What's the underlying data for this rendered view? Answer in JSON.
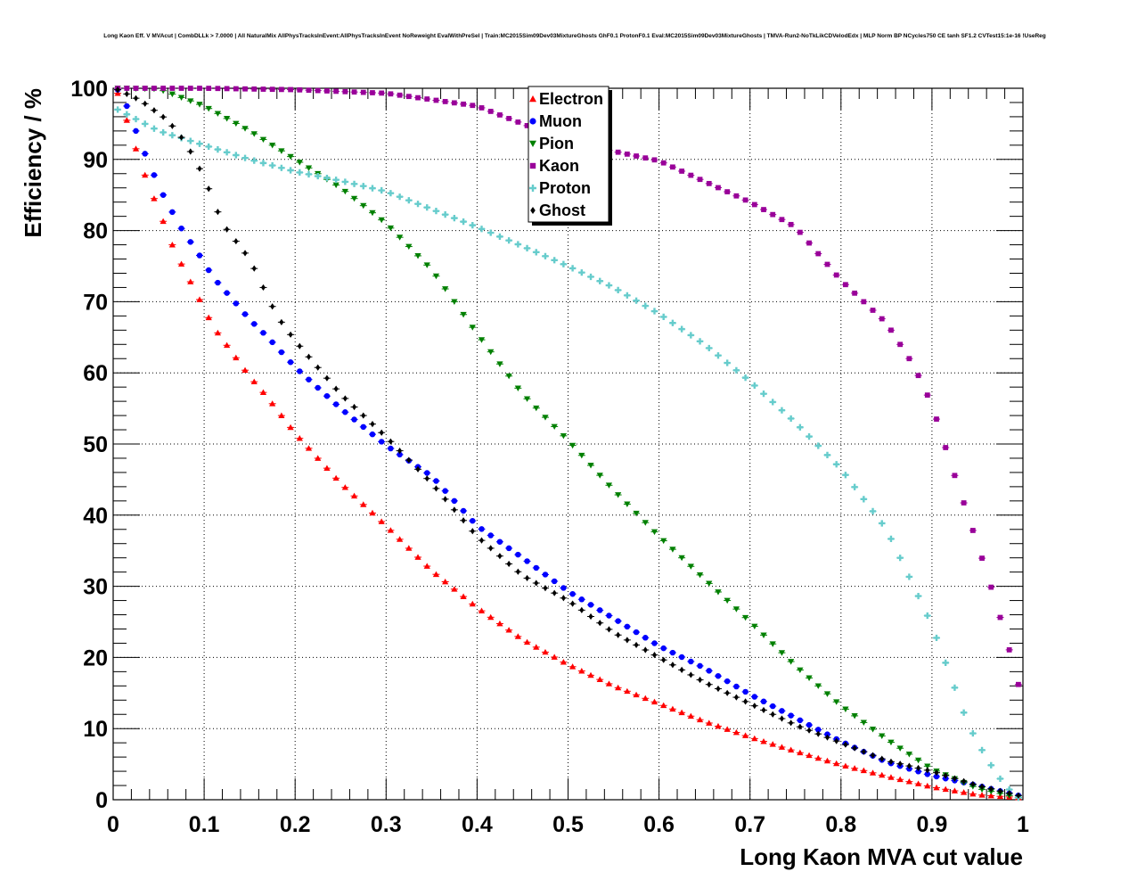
{
  "chart_data": {
    "type": "scatter",
    "title": "Long Kaon Eff. V MVAcut | CombDLLk > 7.0000 | All NaturalMix AllPhysTracksInEvent:AllPhysTracksInEvent NoReweight EvalWithPreSel | Train:MC2015Sim09Dev03MixtureGhosts GhF0.1 ProtonF0.1 Eval:MC2015Sim09Dev03MixtureGhosts | TMVA-Run2-NoTkLikCDVelodEdx | MLP Norm BP NCycles750 CE tanh SF1.2 CVTest15:1e-16 !UseReg",
    "xlabel": "Long Kaon MVA cut value",
    "ylabel": "Efficiency / %",
    "xlim": [
      0,
      1
    ],
    "ylim": [
      0,
      100
    ],
    "x_ticks": [
      "0",
      "0.1",
      "0.2",
      "0.3",
      "0.4",
      "0.5",
      "0.6",
      "0.7",
      "0.8",
      "0.9",
      "1"
    ],
    "y_ticks": [
      "0",
      "10",
      "20",
      "30",
      "40",
      "50",
      "60",
      "70",
      "80",
      "90",
      "100"
    ],
    "grid": true,
    "legend_position": "top-center",
    "n_points": 100,
    "series": [
      {
        "name": "Electron",
        "color": "#ff0000",
        "marker": "triangle-up",
        "anchors": [
          [
            0.005,
            99.3
          ],
          [
            0.015,
            95.5
          ],
          [
            0.025,
            91.5
          ],
          [
            0.035,
            87.8
          ],
          [
            0.045,
            84.5
          ],
          [
            0.055,
            81.3
          ],
          [
            0.065,
            78
          ],
          [
            0.075,
            75.3
          ],
          [
            0.085,
            72.8
          ],
          [
            0.095,
            70.3
          ],
          [
            0.11,
            66.5
          ],
          [
            0.13,
            63
          ],
          [
            0.15,
            59.5
          ],
          [
            0.17,
            56.5
          ],
          [
            0.2,
            51.5
          ],
          [
            0.25,
            44.5
          ],
          [
            0.3,
            38.5
          ],
          [
            0.35,
            32.2
          ],
          [
            0.4,
            27
          ],
          [
            0.45,
            22.5
          ],
          [
            0.5,
            19
          ],
          [
            0.55,
            16
          ],
          [
            0.6,
            13.5
          ],
          [
            0.65,
            11
          ],
          [
            0.7,
            8.8
          ],
          [
            0.75,
            6.8
          ],
          [
            0.8,
            4.9
          ],
          [
            0.85,
            3.3
          ],
          [
            0.9,
            1.8
          ],
          [
            0.95,
            0.7
          ],
          [
            0.995,
            0.3
          ]
        ]
      },
      {
        "name": "Muon",
        "color": "#0000ff",
        "marker": "circle",
        "anchors": [
          [
            0.005,
            99.8
          ],
          [
            0.015,
            97.5
          ],
          [
            0.025,
            94
          ],
          [
            0.035,
            90.8
          ],
          [
            0.045,
            87.8
          ],
          [
            0.055,
            85
          ],
          [
            0.065,
            82.6
          ],
          [
            0.075,
            80.3
          ],
          [
            0.085,
            78.4
          ],
          [
            0.095,
            76.5
          ],
          [
            0.11,
            73.4
          ],
          [
            0.13,
            70.5
          ],
          [
            0.15,
            67.5
          ],
          [
            0.17,
            65
          ],
          [
            0.2,
            60.8
          ],
          [
            0.25,
            55
          ],
          [
            0.3,
            49.8
          ],
          [
            0.35,
            45.5
          ],
          [
            0.4,
            38.5
          ],
          [
            0.45,
            34
          ],
          [
            0.5,
            29.3
          ],
          [
            0.55,
            25.5
          ],
          [
            0.6,
            21.6
          ],
          [
            0.65,
            18.5
          ],
          [
            0.7,
            14.8
          ],
          [
            0.75,
            11.5
          ],
          [
            0.8,
            8.2
          ],
          [
            0.85,
            5.3
          ],
          [
            0.9,
            3.4
          ],
          [
            0.95,
            2
          ],
          [
            0.995,
            0.6
          ]
        ]
      },
      {
        "name": "Pion",
        "color": "#008000",
        "marker": "triangle-down",
        "anchors": [
          [
            0.005,
            100
          ],
          [
            0.05,
            99.9
          ],
          [
            0.1,
            97.5
          ],
          [
            0.15,
            94
          ],
          [
            0.2,
            90
          ],
          [
            0.25,
            86
          ],
          [
            0.3,
            81
          ],
          [
            0.35,
            74.5
          ],
          [
            0.4,
            65.5
          ],
          [
            0.45,
            57
          ],
          [
            0.5,
            50.5
          ],
          [
            0.55,
            43.5
          ],
          [
            0.6,
            37
          ],
          [
            0.65,
            31
          ],
          [
            0.7,
            25
          ],
          [
            0.75,
            18.8
          ],
          [
            0.8,
            13.2
          ],
          [
            0.85,
            8.5
          ],
          [
            0.9,
            4.3
          ],
          [
            0.95,
            1.6
          ],
          [
            0.995,
            0.3
          ]
        ]
      },
      {
        "name": "Kaon",
        "color": "#990099",
        "marker": "square",
        "anchors": [
          [
            0.005,
            100
          ],
          [
            0.1,
            100
          ],
          [
            0.2,
            99.8
          ],
          [
            0.3,
            99.3
          ],
          [
            0.4,
            97.5
          ],
          [
            0.5,
            92.5
          ],
          [
            0.6,
            89.8
          ],
          [
            0.7,
            84
          ],
          [
            0.75,
            80.5
          ],
          [
            0.8,
            73
          ],
          [
            0.85,
            67
          ],
          [
            0.88,
            61
          ],
          [
            0.9,
            55.5
          ],
          [
            0.92,
            47.5
          ],
          [
            0.94,
            39.8
          ],
          [
            0.96,
            32
          ],
          [
            0.98,
            23.5
          ],
          [
            0.995,
            16.2
          ]
        ]
      },
      {
        "name": "Proton",
        "color": "#66cccc",
        "marker": "plus",
        "anchors": [
          [
            0.005,
            97
          ],
          [
            0.05,
            94
          ],
          [
            0.1,
            92
          ],
          [
            0.15,
            90
          ],
          [
            0.2,
            88.3
          ],
          [
            0.25,
            87
          ],
          [
            0.3,
            85.5
          ],
          [
            0.35,
            83
          ],
          [
            0.4,
            80.5
          ],
          [
            0.45,
            77.8
          ],
          [
            0.5,
            75
          ],
          [
            0.55,
            72
          ],
          [
            0.6,
            68.3
          ],
          [
            0.65,
            64
          ],
          [
            0.7,
            58.8
          ],
          [
            0.75,
            53
          ],
          [
            0.8,
            46.5
          ],
          [
            0.85,
            38
          ],
          [
            0.88,
            30
          ],
          [
            0.9,
            24.5
          ],
          [
            0.92,
            17.5
          ],
          [
            0.94,
            10.5
          ],
          [
            0.96,
            5.8
          ],
          [
            0.98,
            2
          ],
          [
            0.995,
            0.3
          ]
        ]
      },
      {
        "name": "Ghost",
        "color": "#000000",
        "marker": "diamond",
        "anchors": [
          [
            0.005,
            99.8
          ],
          [
            0.03,
            98.3
          ],
          [
            0.06,
            95.5
          ],
          [
            0.08,
            92.3
          ],
          [
            0.1,
            87.5
          ],
          [
            0.12,
            81
          ],
          [
            0.15,
            76
          ],
          [
            0.18,
            68
          ],
          [
            0.2,
            64.5
          ],
          [
            0.25,
            57
          ],
          [
            0.3,
            51
          ],
          [
            0.35,
            44.5
          ],
          [
            0.4,
            37
          ],
          [
            0.45,
            31.5
          ],
          [
            0.5,
            28
          ],
          [
            0.55,
            23.5
          ],
          [
            0.6,
            20
          ],
          [
            0.65,
            16.5
          ],
          [
            0.7,
            13.5
          ],
          [
            0.75,
            10.5
          ],
          [
            0.8,
            8
          ],
          [
            0.85,
            5.5
          ],
          [
            0.9,
            4
          ],
          [
            0.95,
            2
          ],
          [
            0.995,
            0.6
          ]
        ]
      }
    ]
  }
}
